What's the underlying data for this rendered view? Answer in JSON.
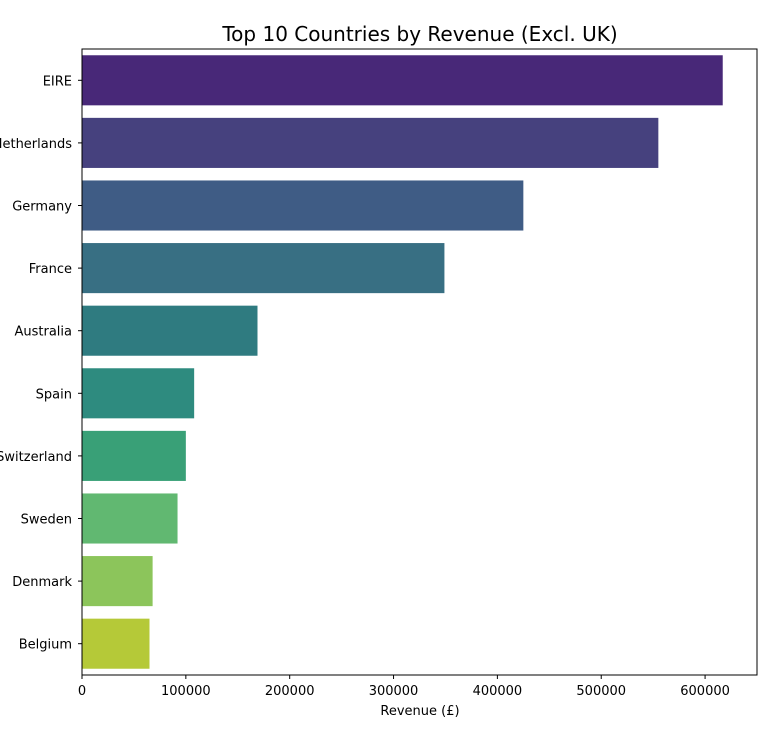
{
  "chart_data": {
    "type": "bar",
    "orientation": "horizontal",
    "title": "Top 10 Countries by Revenue (Excl. UK)",
    "xlabel": "Revenue (£)",
    "ylabel": "",
    "categories": [
      "EIRE",
      "Netherlands",
      "Germany",
      "France",
      "Australia",
      "Spain",
      "Switzerland",
      "Sweden",
      "Denmark",
      "Belgium"
    ],
    "values": [
      617000,
      555000,
      425000,
      349000,
      169000,
      108000,
      100000,
      92000,
      68000,
      65000
    ],
    "colors": [
      "#482878",
      "#46417e",
      "#3f5c85",
      "#386f83",
      "#2f7b80",
      "#2e8b7f",
      "#39a077",
      "#61b871",
      "#8cc55b",
      "#b5c938"
    ],
    "xlim": [
      0,
      650000
    ],
    "xticks": [
      0,
      100000,
      200000,
      300000,
      400000,
      500000,
      600000
    ],
    "xtick_labels": [
      "0",
      "100000",
      "200000",
      "300000",
      "400000",
      "500000",
      "600000"
    ],
    "grid": false,
    "legend": "none"
  }
}
